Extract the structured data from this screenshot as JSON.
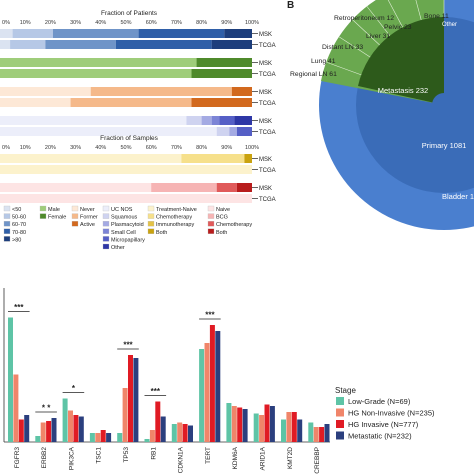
{
  "panel_b_label": "B",
  "fraction_patients_title": "Fraction of Patients",
  "fraction_samples_title": "Fraction of Samples",
  "pct_ticks": [
    "0%",
    "10%",
    "20%",
    "30%",
    "40%",
    "50%",
    "60%",
    "70%",
    "80%",
    "90%",
    "100%"
  ],
  "cohort_labels": [
    "MSK",
    "TCGA"
  ],
  "patient_rows": [
    {
      "cohort": "MSK",
      "segments": [
        {
          "frac": 0.05,
          "color": "#dbe3f1"
        },
        {
          "frac": 0.16,
          "color": "#b6c8e6"
        },
        {
          "frac": 0.34,
          "color": "#6f94c8"
        },
        {
          "frac": 0.34,
          "color": "#2f5fa8"
        },
        {
          "frac": 0.11,
          "color": "#1d3e7c"
        }
      ]
    },
    {
      "cohort": "TCGA",
      "segments": [
        {
          "frac": 0.04,
          "color": "#dbe3f1"
        },
        {
          "frac": 0.14,
          "color": "#b6c8e6"
        },
        {
          "frac": 0.28,
          "color": "#6f94c8"
        },
        {
          "frac": 0.38,
          "color": "#2f5fa8"
        },
        {
          "frac": 0.16,
          "color": "#1d3e7c"
        }
      ]
    },
    {
      "cohort": "MSK",
      "segments": [
        {
          "frac": 0.78,
          "color": "#9fcd7a"
        },
        {
          "frac": 0.22,
          "color": "#4f8a2b"
        }
      ]
    },
    {
      "cohort": "TCGA",
      "segments": [
        {
          "frac": 0.76,
          "color": "#9fcd7a"
        },
        {
          "frac": 0.24,
          "color": "#4f8a2b"
        }
      ]
    },
    {
      "cohort": "MSK",
      "segments": [
        {
          "frac": 0.36,
          "color": "#fde8d6"
        },
        {
          "frac": 0.56,
          "color": "#f5b98a"
        },
        {
          "frac": 0.08,
          "color": "#d2691e"
        }
      ]
    },
    {
      "cohort": "TCGA",
      "segments": [
        {
          "frac": 0.28,
          "color": "#fde8d6"
        },
        {
          "frac": 0.48,
          "color": "#f5b98a"
        },
        {
          "frac": 0.24,
          "color": "#d2691e"
        }
      ]
    },
    {
      "cohort": "MSK",
      "segments": [
        {
          "frac": 0.74,
          "color": "#eceefa"
        },
        {
          "frac": 0.06,
          "color": "#cfd3f0"
        },
        {
          "frac": 0.04,
          "color": "#a4aae3"
        },
        {
          "frac": 0.03,
          "color": "#7c84d6"
        },
        {
          "frac": 0.06,
          "color": "#555fc6"
        },
        {
          "frac": 0.07,
          "color": "#2e37a6"
        }
      ]
    },
    {
      "cohort": "TCGA",
      "segments": [
        {
          "frac": 0.86,
          "color": "#eceefa"
        },
        {
          "frac": 0.05,
          "color": "#cfd3f0"
        },
        {
          "frac": 0.03,
          "color": "#a4aae3"
        },
        {
          "frac": 0.06,
          "color": "#555fc6"
        }
      ]
    }
  ],
  "sample_rows": [
    {
      "cohort": "MSK",
      "segments": [
        {
          "frac": 0.72,
          "color": "#fcf2cc"
        },
        {
          "frac": 0.25,
          "color": "#f6e08b"
        },
        {
          "frac": 0.03,
          "color": "#c9a20f"
        }
      ]
    },
    {
      "cohort": "TCGA",
      "segments": [
        {
          "frac": 1.0,
          "color": "#fcf2cc"
        }
      ]
    },
    {
      "cohort": "MSK",
      "segments": [
        {
          "frac": 0.6,
          "color": "#fde4e4"
        },
        {
          "frac": 0.26,
          "color": "#f6b4b4"
        },
        {
          "frac": 0.08,
          "color": "#e05a5a"
        },
        {
          "frac": 0.06,
          "color": "#b81c1c"
        }
      ]
    },
    {
      "cohort": "TCGA",
      "segments": [
        {
          "frac": 1.0,
          "color": "#fde4e4"
        }
      ]
    }
  ],
  "legend_columns": [
    [
      {
        "label": "<50",
        "color": "#dbe3f1"
      },
      {
        "label": "50-60",
        "color": "#b6c8e6"
      },
      {
        "label": "60-70",
        "color": "#6f94c8"
      },
      {
        "label": "70-80",
        "color": "#2f5fa8"
      },
      {
        "label": ">80",
        "color": "#1d3e7c"
      }
    ],
    [
      {
        "label": "Male",
        "color": "#9fcd7a"
      },
      {
        "label": "Female",
        "color": "#4f8a2b"
      }
    ],
    [
      {
        "label": "Never",
        "color": "#fde8d6"
      },
      {
        "label": "Former",
        "color": "#f5b98a"
      },
      {
        "label": "Active",
        "color": "#d2691e"
      }
    ],
    [
      {
        "label": "UC NOS",
        "color": "#eceefa"
      },
      {
        "label": "Squamous",
        "color": "#cfd3f0"
      },
      {
        "label": "Plasmacytoid",
        "color": "#a4aae3"
      },
      {
        "label": "Small Cell",
        "color": "#7c84d6"
      },
      {
        "label": "Micropapillary",
        "color": "#555fc6"
      },
      {
        "label": "Other",
        "color": "#2e37a6"
      }
    ],
    [
      {
        "label": "Treatment-Naive",
        "color": "#fcf2cc"
      },
      {
        "label": "Chemotherapy",
        "color": "#f6e08b"
      },
      {
        "label": "Immunotherapy",
        "color": "#e3c247"
      },
      {
        "label": "Both",
        "color": "#c9a20f"
      }
    ],
    [
      {
        "label": "Naive",
        "color": "#fde4e4"
      },
      {
        "label": "BCG",
        "color": "#f6b4b4"
      },
      {
        "label": "Chemotherapy",
        "color": "#e05a5a"
      },
      {
        "label": "Both",
        "color": "#b81c1c"
      }
    ]
  ],
  "sunburst": {
    "inner_label": "Metastasis 232",
    "primary_label": "Primary 1081",
    "bladder_label": "Bladder 1",
    "outer_labels": [
      "Retroperitoneum 12",
      "Bone 11",
      "Pelvic 23",
      "Liver 31",
      "Distant LN 33",
      "Lung 41",
      "Regional LN 61",
      "Other"
    ],
    "colors": {
      "primary": "#4a7fcf",
      "primary_inner": "#3a6cb8",
      "metastasis": "#2d5a1b",
      "outer_green": "#6aa84f"
    }
  },
  "chart_data": {
    "type": "bar",
    "categories": [
      "FGFR3",
      "ERBB2",
      "PIK3CA",
      "TSC1",
      "TP53",
      "RB1",
      "CDKN1A",
      "TERT",
      "KDM6A",
      "ARID1A",
      "KMT2D",
      "CREBBP"
    ],
    "series": [
      {
        "name": "Low-Grade (N=69)",
        "color": "#5ec4a6",
        "values": [
          0.83,
          0.04,
          0.29,
          0.06,
          0.06,
          0.02,
          0.12,
          0.62,
          0.26,
          0.19,
          0.15,
          0.13
        ]
      },
      {
        "name": "HG Non-Invasive (N=235)",
        "color": "#f0856a",
        "values": [
          0.45,
          0.13,
          0.21,
          0.06,
          0.36,
          0.08,
          0.13,
          0.66,
          0.24,
          0.18,
          0.2,
          0.1
        ]
      },
      {
        "name": "HG Invasive (N=777)",
        "color": "#e01b24",
        "values": [
          0.15,
          0.14,
          0.18,
          0.08,
          0.58,
          0.27,
          0.12,
          0.78,
          0.23,
          0.25,
          0.2,
          0.1
        ]
      },
      {
        "name": "Metastatic (N=232)",
        "color": "#2b3f7e",
        "values": [
          0.18,
          0.16,
          0.17,
          0.06,
          0.56,
          0.17,
          0.11,
          0.74,
          0.22,
          0.24,
          0.15,
          0.12
        ]
      }
    ],
    "significance": [
      {
        "category": "FGFR3",
        "label": "***"
      },
      {
        "category": "ERBB2",
        "label": "* *"
      },
      {
        "category": "PIK3CA",
        "label": "*"
      },
      {
        "category": "TP53",
        "label": "***"
      },
      {
        "category": "RB1",
        "label": "***"
      },
      {
        "category": "TERT",
        "label": "***"
      }
    ],
    "ylim": [
      0,
      1.0
    ],
    "legend_title": "Stage",
    "legend_position": "right"
  }
}
